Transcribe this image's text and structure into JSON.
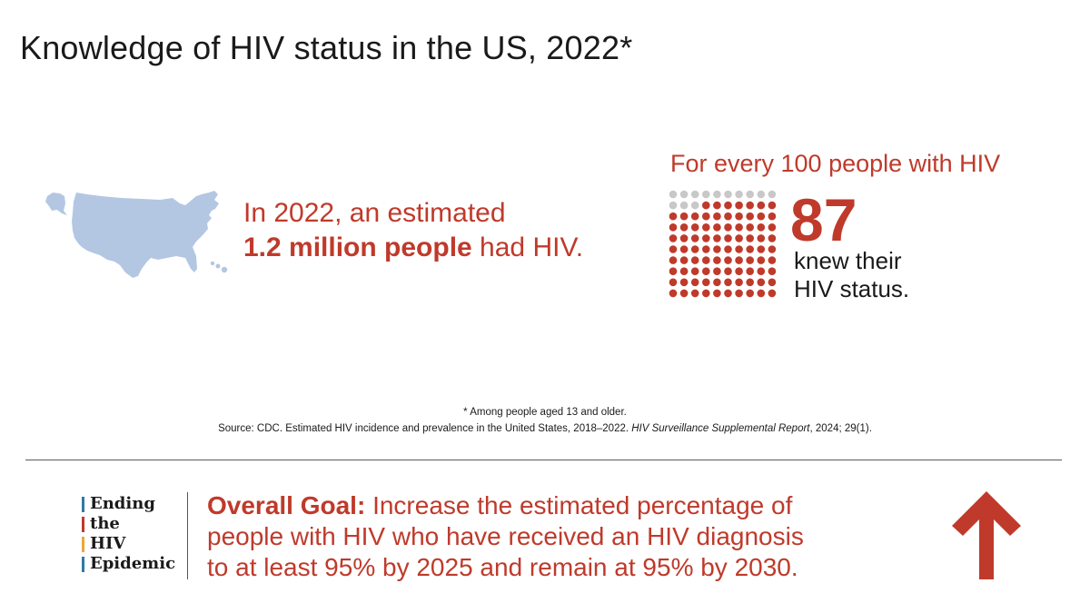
{
  "title": "Knowledge of HIV status in the US, 2022*",
  "estimate": {
    "line1": "In 2022, an estimated",
    "bold": "1.2 million people",
    "rest": " had HIV."
  },
  "ratio": {
    "header": "For every 100 people with HIV",
    "number": "87",
    "line1": "knew their",
    "line2": "HIV status.",
    "total": 100,
    "knew": 87
  },
  "footnote": {
    "asterisk": "* Among people aged 13 and older.",
    "source_pre": "Source: CDC. Estimated HIV incidence and prevalence in the United States, 2018–2022. ",
    "source_italic": "HIV Surveillance Supplemental Report",
    "source_post": ", 2024; 29(1)."
  },
  "ehe": {
    "words": [
      "Ending",
      "the",
      "HIV",
      "Epidemic"
    ],
    "bar_colors": [
      "#2e7aa6",
      "#bf3a2b",
      "#e8a83a",
      "#2e7aa6"
    ]
  },
  "goal": {
    "label": "Overall Goal:",
    "line1": " Increase the estimated percentage of",
    "line2": "people with HIV who have received an HIV diagnosis",
    "line3": "to at least 95% by 2025 and remain at 95% by 2030."
  },
  "colors": {
    "accent": "#bf3a2b",
    "map": "#b3c7e3",
    "dot_inactive": "#c8c8c8"
  },
  "icons": {
    "map": "us-map-icon",
    "arrow": "up-arrow-icon"
  }
}
